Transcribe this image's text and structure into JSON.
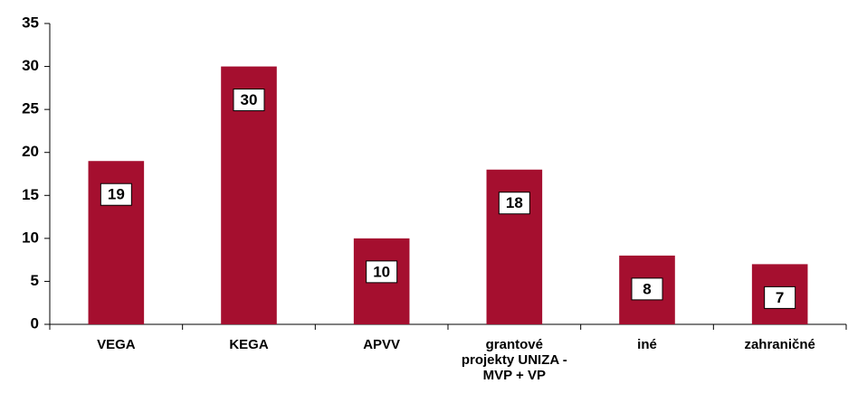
{
  "chart_data": {
    "type": "bar",
    "categories": [
      "VEGA",
      "KEGA",
      "APVV",
      "grantové projekty UNIZA - MVP + VP",
      "iné",
      "zahraničné"
    ],
    "values": [
      19,
      30,
      10,
      18,
      8,
      7
    ],
    "color": "#a50f2f",
    "ylim": [
      0,
      35
    ],
    "yticks": [
      0,
      5,
      10,
      15,
      20,
      25,
      30,
      35
    ],
    "grid": false
  }
}
